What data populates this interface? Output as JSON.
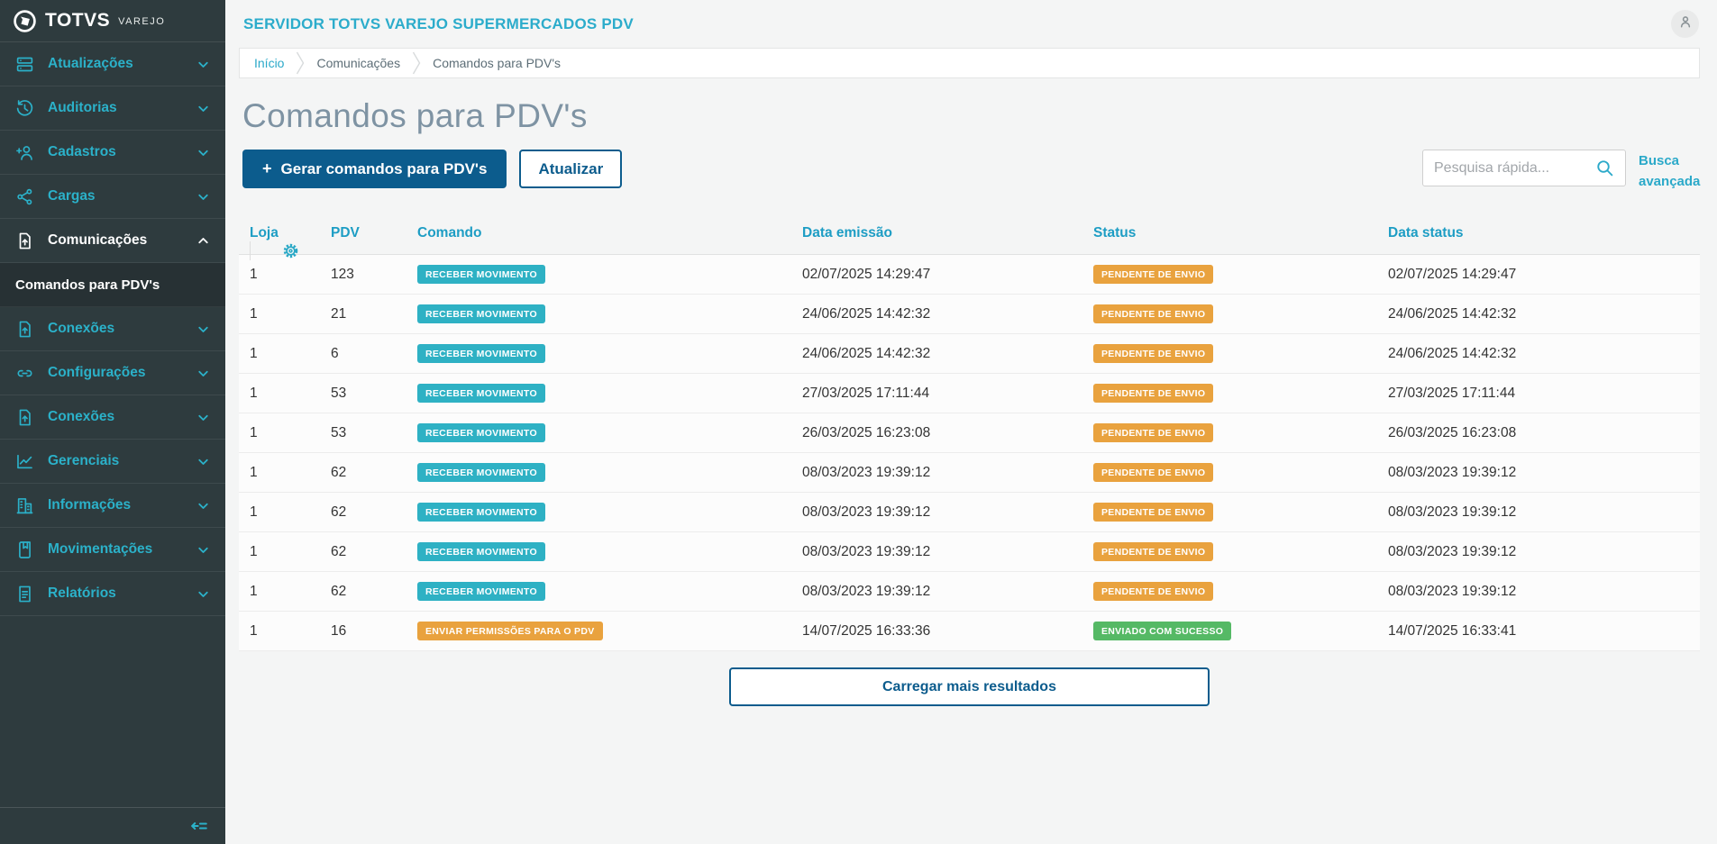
{
  "brand": {
    "name": "TOTVS",
    "tagline": "VAREJO"
  },
  "colors": {
    "accent_teal": "#2bb1c9",
    "primary_blue": "#0c5c8d",
    "badge_info": "#2eb1c4",
    "badge_warning": "#e9a23e",
    "badge_success": "#55b965",
    "sidebar_bg": "#2e3b3e"
  },
  "sidebar": {
    "items": [
      {
        "key": "atualizacoes",
        "label": "Atualizações",
        "icon": "server-icon",
        "chevron": "down",
        "active": false
      },
      {
        "key": "auditorias",
        "label": "Auditorias",
        "icon": "history-icon",
        "chevron": "down",
        "active": false
      },
      {
        "key": "cadastros",
        "label": "Cadastros",
        "icon": "user-plus-icon",
        "chevron": "down",
        "active": false
      },
      {
        "key": "cargas",
        "label": "Cargas",
        "icon": "share-icon",
        "chevron": "down",
        "active": false
      },
      {
        "key": "comunicacoes",
        "label": "Comunicações",
        "icon": "file-upload-icon",
        "chevron": "up",
        "active": true,
        "submenu": [
          {
            "key": "comandos-para-pdvs",
            "label": "Comandos para PDV's",
            "active": true
          }
        ]
      },
      {
        "key": "conexoes",
        "label": "Conexões",
        "icon": "file-upload-icon",
        "chevron": "down",
        "active": false
      },
      {
        "key": "configuracoes",
        "label": "Configurações",
        "icon": "link-icon",
        "chevron": "down",
        "active": false
      },
      {
        "key": "conexoes-2",
        "label": "Conexões",
        "icon": "file-upload-icon",
        "chevron": "down",
        "active": false
      },
      {
        "key": "gerenciais",
        "label": "Gerenciais",
        "icon": "chart-icon",
        "chevron": "down",
        "active": false
      },
      {
        "key": "informacoes",
        "label": "Informações",
        "icon": "building-icon",
        "chevron": "down",
        "active": false
      },
      {
        "key": "movimentacoes",
        "label": "Movimentações",
        "icon": "book-icon",
        "chevron": "down",
        "active": false
      },
      {
        "key": "relatorios",
        "label": "Relatórios",
        "icon": "report-icon",
        "chevron": "down",
        "active": false
      }
    ],
    "collapse_icon": "collapse-menu-icon"
  },
  "header": {
    "title": "SERVIDOR TOTVS VAREJO SUPERMERCADOS PDV",
    "avatar_icon": "user-icon"
  },
  "breadcrumb": [
    {
      "label": "Início",
      "active": true
    },
    {
      "label": "Comunicações",
      "active": false
    },
    {
      "label": "Comandos para PDV's",
      "active": false
    }
  ],
  "page": {
    "title": "Comandos para PDV's"
  },
  "toolbar": {
    "generate_plus": "+",
    "generate_label": "Gerar comandos para PDV's",
    "refresh_label": "Atualizar",
    "search_placeholder": "Pesquisa rápida...",
    "advanced_search": "Busca avançada"
  },
  "table": {
    "columns": [
      "Loja",
      "PDV",
      "Comando",
      "Data emissão",
      "Status",
      "Data status"
    ],
    "settings_icon": "gear-icon",
    "rows": [
      {
        "loja": "1",
        "pdv": "123",
        "comando": "RECEBER MOVIMENTO",
        "comando_kind": "info",
        "data_emissao": "02/07/2025 14:29:47",
        "status": "PENDENTE DE ENVIO",
        "status_kind": "warning",
        "data_status": "02/07/2025 14:29:47"
      },
      {
        "loja": "1",
        "pdv": "21",
        "comando": "RECEBER MOVIMENTO",
        "comando_kind": "info",
        "data_emissao": "24/06/2025 14:42:32",
        "status": "PENDENTE DE ENVIO",
        "status_kind": "warning",
        "data_status": "24/06/2025 14:42:32"
      },
      {
        "loja": "1",
        "pdv": "6",
        "comando": "RECEBER MOVIMENTO",
        "comando_kind": "info",
        "data_emissao": "24/06/2025 14:42:32",
        "status": "PENDENTE DE ENVIO",
        "status_kind": "warning",
        "data_status": "24/06/2025 14:42:32"
      },
      {
        "loja": "1",
        "pdv": "53",
        "comando": "RECEBER MOVIMENTO",
        "comando_kind": "info",
        "data_emissao": "27/03/2025 17:11:44",
        "status": "PENDENTE DE ENVIO",
        "status_kind": "warning",
        "data_status": "27/03/2025 17:11:44"
      },
      {
        "loja": "1",
        "pdv": "53",
        "comando": "RECEBER MOVIMENTO",
        "comando_kind": "info",
        "data_emissao": "26/03/2025 16:23:08",
        "status": "PENDENTE DE ENVIO",
        "status_kind": "warning",
        "data_status": "26/03/2025 16:23:08"
      },
      {
        "loja": "1",
        "pdv": "62",
        "comando": "RECEBER MOVIMENTO",
        "comando_kind": "info",
        "data_emissao": "08/03/2023 19:39:12",
        "status": "PENDENTE DE ENVIO",
        "status_kind": "warning",
        "data_status": "08/03/2023 19:39:12"
      },
      {
        "loja": "1",
        "pdv": "62",
        "comando": "RECEBER MOVIMENTO",
        "comando_kind": "info",
        "data_emissao": "08/03/2023 19:39:12",
        "status": "PENDENTE DE ENVIO",
        "status_kind": "warning",
        "data_status": "08/03/2023 19:39:12"
      },
      {
        "loja": "1",
        "pdv": "62",
        "comando": "RECEBER MOVIMENTO",
        "comando_kind": "info",
        "data_emissao": "08/03/2023 19:39:12",
        "status": "PENDENTE DE ENVIO",
        "status_kind": "warning",
        "data_status": "08/03/2023 19:39:12"
      },
      {
        "loja": "1",
        "pdv": "62",
        "comando": "RECEBER MOVIMENTO",
        "comando_kind": "info",
        "data_emissao": "08/03/2023 19:39:12",
        "status": "PENDENTE DE ENVIO",
        "status_kind": "warning",
        "data_status": "08/03/2023 19:39:12"
      },
      {
        "loja": "1",
        "pdv": "16",
        "comando": "ENVIAR PERMISSÕES PARA O PDV",
        "comando_kind": "warning",
        "data_emissao": "14/07/2025 16:33:36",
        "status": "ENVIADO COM SUCESSO",
        "status_kind": "success",
        "data_status": "14/07/2025 16:33:41"
      }
    ]
  },
  "footer": {
    "load_more": "Carregar mais resultados"
  }
}
